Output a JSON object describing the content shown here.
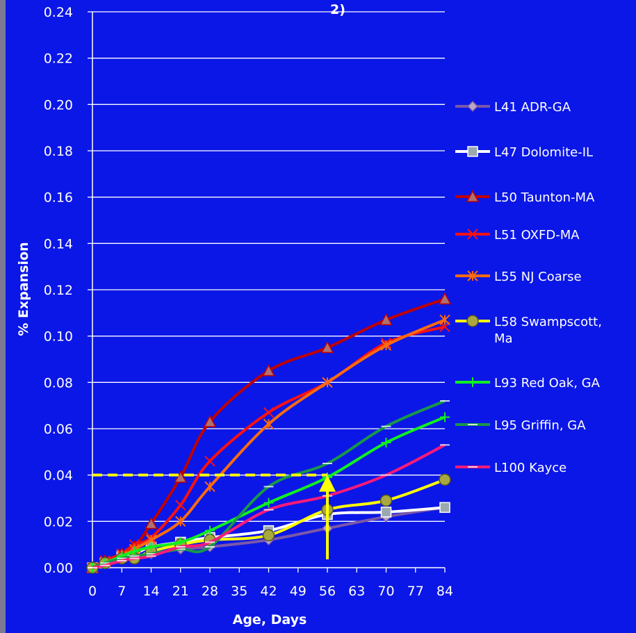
{
  "chart_data": {
    "type": "line",
    "title_fragment": "2)",
    "xlabel": "Age, Days",
    "ylabel": "% Expansion",
    "xlim": [
      0,
      84
    ],
    "ylim": [
      0.0,
      0.24
    ],
    "x_ticks": [
      "0",
      "7",
      "14",
      "21",
      "28",
      "35",
      "42",
      "49",
      "56",
      "63",
      "70",
      "77",
      "84"
    ],
    "y_ticks": [
      "0.00",
      "0.02",
      "0.04",
      "0.06",
      "0.08",
      "0.10",
      "0.12",
      "0.14",
      "0.16",
      "0.18",
      "0.20",
      "0.22",
      "0.24"
    ],
    "grid": "horizontal",
    "legend_position": "right",
    "annotations": {
      "threshold_y": 0.04,
      "arrow_x": 56,
      "color": "#ffff00"
    },
    "series": [
      {
        "name": "L41 ADR-GA",
        "color": "#7a57a8",
        "marker": "diamond",
        "x": [
          0,
          3,
          7,
          10,
          14,
          21,
          28,
          42,
          56,
          70,
          84
        ],
        "y": [
          0.0,
          0.002,
          0.004,
          0.005,
          0.006,
          0.008,
          0.009,
          0.012,
          0.017,
          0.022,
          0.026
        ]
      },
      {
        "name": "L47 Dolomite-IL",
        "color": "#ffffff",
        "marker": "square",
        "x": [
          0,
          3,
          7,
          10,
          14,
          21,
          28,
          42,
          56,
          70,
          84
        ],
        "y": [
          0.0,
          0.002,
          0.005,
          0.006,
          0.009,
          0.011,
          0.013,
          0.016,
          0.023,
          0.024,
          0.026
        ]
      },
      {
        "name": "L50 Taunton-MA",
        "color": "#c00000",
        "marker": "triangle",
        "x": [
          0,
          3,
          7,
          10,
          14,
          21,
          28,
          42,
          56,
          70,
          84
        ],
        "y": [
          0.0,
          0.003,
          0.006,
          0.009,
          0.019,
          0.039,
          0.063,
          0.085,
          0.095,
          0.107,
          0.116
        ]
      },
      {
        "name": "L51 OXFD-MA",
        "color": "#ff1010",
        "marker": "x",
        "x": [
          0,
          3,
          7,
          10,
          14,
          21,
          28,
          42,
          56,
          70,
          84
        ],
        "y": [
          0.0,
          0.003,
          0.006,
          0.01,
          0.013,
          0.027,
          0.046,
          0.067,
          0.08,
          0.097,
          0.104
        ]
      },
      {
        "name": "L55 NJ Coarse",
        "color": "#ff6a10",
        "marker": "star",
        "x": [
          0,
          3,
          7,
          10,
          14,
          21,
          28,
          42,
          56,
          70,
          84
        ],
        "y": [
          0.0,
          0.002,
          0.005,
          0.008,
          0.012,
          0.02,
          0.035,
          0.062,
          0.08,
          0.096,
          0.107
        ]
      },
      {
        "name": "L58 Swampscott, Ma",
        "color": "#ffff00",
        "marker": "circle",
        "x": [
          0,
          3,
          7,
          10,
          14,
          21,
          28,
          42,
          56,
          70,
          84
        ],
        "y": [
          0.0,
          0.002,
          0.004,
          0.004,
          0.007,
          0.01,
          0.012,
          0.014,
          0.025,
          0.029,
          0.038
        ]
      },
      {
        "name": "L93 Red Oak, GA",
        "color": "#10f020",
        "marker": "plus",
        "x": [
          0,
          3,
          7,
          10,
          14,
          21,
          28,
          42,
          56,
          70,
          84
        ],
        "y": [
          0.0,
          0.002,
          0.005,
          0.007,
          0.009,
          0.011,
          0.016,
          0.028,
          0.039,
          0.054,
          0.065
        ]
      },
      {
        "name": "L95 Griffin, GA",
        "color": "#189848",
        "marker": "dash",
        "x": [
          0,
          3,
          7,
          10,
          14,
          21,
          28,
          42,
          56,
          70,
          84
        ],
        "y": [
          0.0,
          0.002,
          0.004,
          0.005,
          0.006,
          0.008,
          0.009,
          0.035,
          0.045,
          0.061,
          0.072
        ]
      },
      {
        "name": "L100 Kayce",
        "color": "#ff1a78",
        "marker": "dash",
        "x": [
          0,
          3,
          7,
          10,
          14,
          21,
          28,
          42,
          56,
          70,
          84
        ],
        "y": [
          0.0,
          0.001,
          0.003,
          0.004,
          0.005,
          0.009,
          0.011,
          0.025,
          0.031,
          0.04,
          0.053
        ]
      }
    ]
  }
}
